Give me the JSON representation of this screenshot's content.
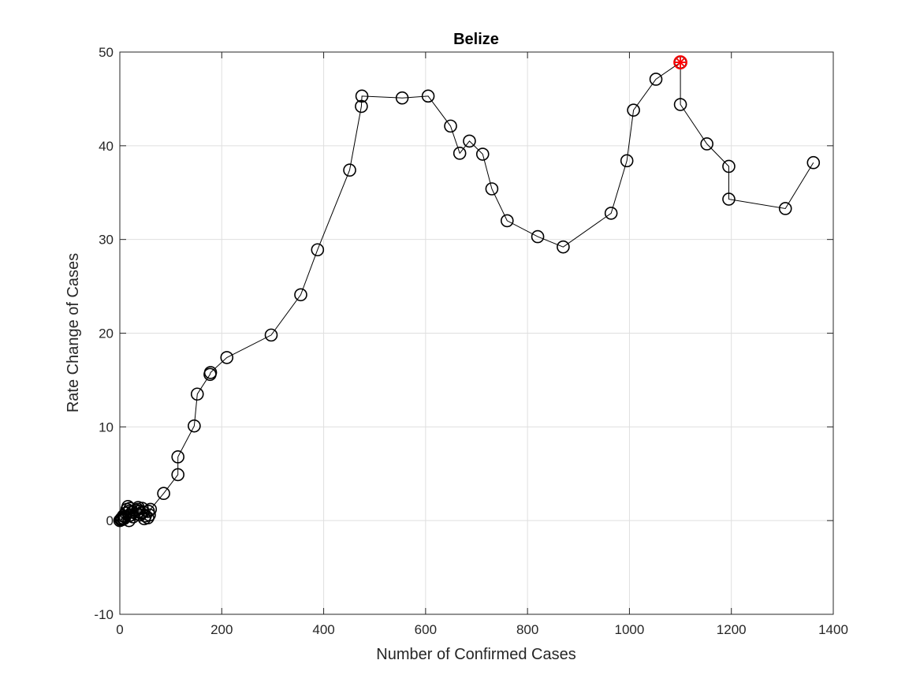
{
  "chart_data": {
    "type": "line",
    "title": "Belize",
    "xlabel": "Number of Confirmed Cases",
    "ylabel": "Rate Change of Cases",
    "xlim": [
      0,
      1400
    ],
    "ylim": [
      -10,
      50
    ],
    "xticks": [
      0,
      200,
      400,
      600,
      800,
      1000,
      1200,
      1400
    ],
    "yticks": [
      -10,
      0,
      10,
      20,
      30,
      40,
      50
    ],
    "grid": true,
    "line_color": "#000000",
    "marker": "circle",
    "highlight_color": "#ff0000",
    "series": [
      {
        "x": [
          0,
          2,
          3,
          4,
          5,
          7,
          8,
          10,
          12,
          14,
          16,
          18,
          18,
          18,
          20,
          22,
          24,
          26,
          30,
          33,
          35,
          36,
          38,
          40,
          42,
          44,
          46,
          48,
          50,
          55,
          56,
          58,
          60,
          86,
          114,
          114,
          146,
          152,
          177,
          178,
          210,
          297,
          355,
          388,
          451,
          474,
          475,
          554,
          605,
          649,
          667,
          686,
          712,
          730,
          760,
          820,
          870,
          964,
          995,
          1008,
          1052,
          1100,
          1100,
          1100,
          1152,
          1195,
          1195,
          1306,
          1361
        ],
        "y": [
          0,
          0.1,
          0.2,
          0.1,
          0.3,
          0.5,
          0.2,
          0.4,
          0.8,
          1.2,
          1.5,
          0.0,
          0.5,
          1.0,
          1.3,
          0.6,
          0.9,
          0.4,
          1.1,
          0.7,
          1.2,
          1.4,
          1.0,
          0.6,
          0.8,
          1.3,
          0.9,
          0.2,
          0.5,
          0.3,
          1.0,
          0.6,
          1.2,
          2.9,
          4.9,
          6.8,
          10.1,
          13.5,
          15.6,
          15.8,
          17.4,
          19.8,
          24.1,
          28.9,
          37.4,
          44.2,
          45.3,
          45.1,
          45.3,
          42.1,
          39.2,
          40.5,
          39.1,
          35.4,
          32.0,
          30.3,
          29.2,
          32.8,
          38.4,
          43.8,
          47.1,
          48.9,
          48.9,
          44.4,
          40.2,
          37.8,
          34.3,
          33.3,
          38.2
        ]
      }
    ],
    "highlight_point": {
      "x": 1100,
      "y": 48.9
    }
  }
}
